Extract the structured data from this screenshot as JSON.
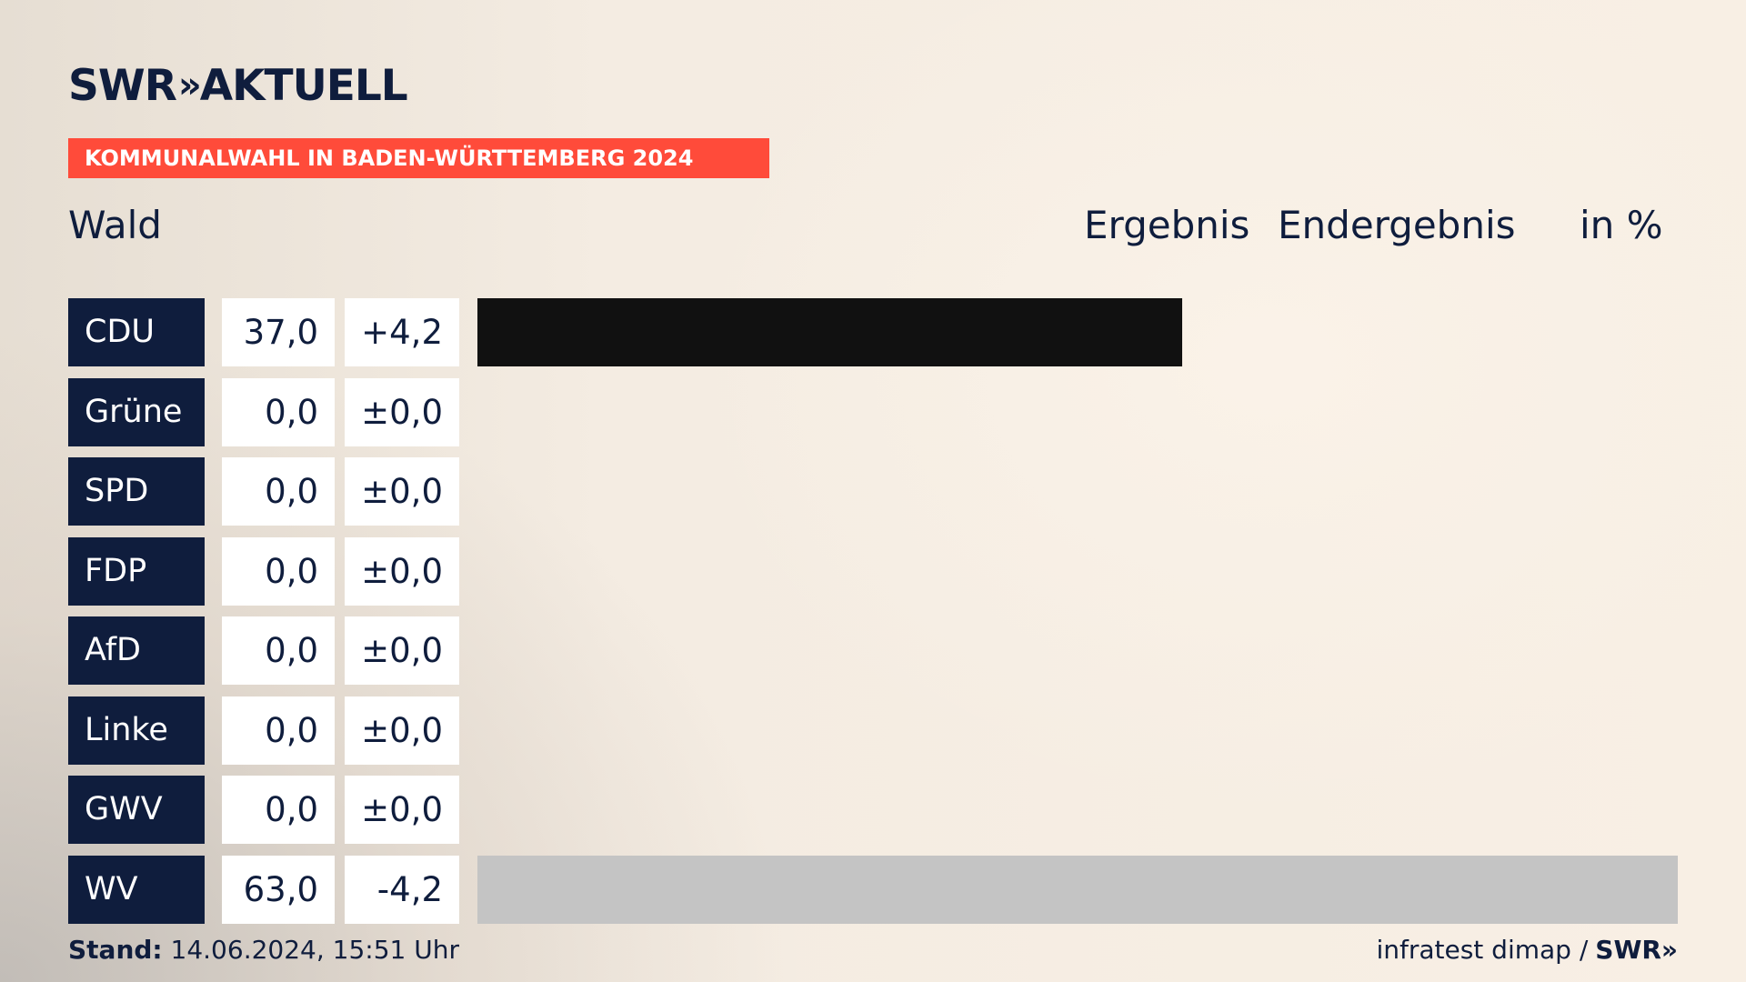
{
  "logo": {
    "text": "SWR",
    "chevrons": "»",
    "suffix": "AKTUELL"
  },
  "banner": {
    "text": "KOMMUNALWAHL IN BADEN-WÜRTTEMBERG 2024"
  },
  "header": {
    "place": "Wald",
    "col_result": "Ergebnis",
    "col_final": "Endergebnis",
    "col_unit": "in %"
  },
  "footer": {
    "stand_label": "Stand:",
    "stand_value": "14.06.2024, 15:51 Uhr",
    "source": "infratest dimap /",
    "source_brand": "SWR",
    "source_chevrons": "»"
  },
  "colors": {
    "party_bg": "#0f1d3d",
    "banner": "#ff4b3a",
    "CDU": "#111111",
    "WV": "#c4c4c4"
  },
  "chart_data": {
    "type": "bar",
    "categories": [
      "CDU",
      "Grüne",
      "SPD",
      "FDP",
      "AfD",
      "Linke",
      "GWV",
      "WV"
    ],
    "values": [
      37.0,
      0.0,
      0.0,
      0.0,
      0.0,
      0.0,
      0.0,
      63.0
    ],
    "value_labels": [
      "37,0",
      "0,0",
      "0,0",
      "0,0",
      "0,0",
      "0,0",
      "0,0",
      "63,0"
    ],
    "diff_labels": [
      "+4,2",
      "±0,0",
      "±0,0",
      "±0,0",
      "±0,0",
      "±0,0",
      "±0,0",
      "-4,2"
    ],
    "bar_colors": [
      "#111111",
      "#111111",
      "#111111",
      "#111111",
      "#111111",
      "#111111",
      "#111111",
      "#c4c4c4"
    ],
    "xlim": [
      0,
      63
    ],
    "title": "Wald",
    "ylabel": "in %"
  }
}
